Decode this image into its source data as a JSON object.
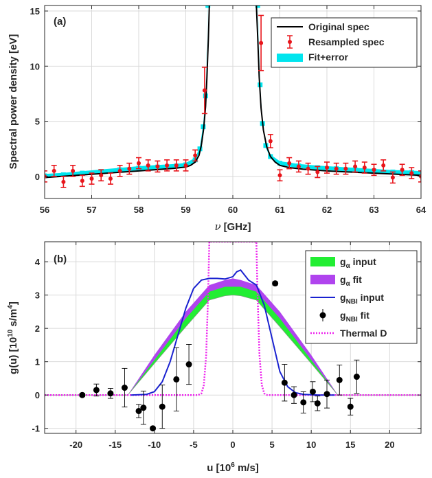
{
  "chart_data": [
    {
      "panel": "(a)",
      "type": "line",
      "xlabel_symbol": "ν",
      "xlabel_unit": "[GHz]",
      "ylabel": "Spectral power density [eV]",
      "xlim": [
        56,
        64
      ],
      "ylim": [
        -2,
        15.5
      ],
      "xticks": [
        56,
        57,
        58,
        59,
        60,
        61,
        62,
        63,
        64
      ],
      "yticks": [
        0,
        5,
        10,
        15
      ],
      "grid": true,
      "legend_position": "top-right",
      "legend": [
        "Original spec",
        "Resampled spec",
        "Fit+error"
      ],
      "colors": {
        "original": "#000000",
        "resampled": "#e8151b",
        "fit": "#00e5ee"
      },
      "original_spec": {
        "x": [
          56.0,
          56.5,
          57.0,
          57.5,
          58.0,
          58.5,
          58.8,
          59.0,
          59.1,
          59.2,
          59.28,
          59.33,
          59.38,
          59.42,
          59.45,
          59.48,
          59.5,
          60.5,
          60.53,
          60.56,
          60.6,
          60.65,
          60.72,
          60.8,
          60.9,
          61.0,
          61.2,
          61.5,
          62.0,
          62.5,
          63.0,
          63.5,
          64.0
        ],
        "y": [
          -0.1,
          0.05,
          0.2,
          0.35,
          0.5,
          0.65,
          0.75,
          0.85,
          1.0,
          1.3,
          1.9,
          2.8,
          4.3,
          6.3,
          9.0,
          12.5,
          15.5,
          15.5,
          12.5,
          9.0,
          6.2,
          4.2,
          2.7,
          1.8,
          1.3,
          1.0,
          0.8,
          0.65,
          0.5,
          0.4,
          0.3,
          0.2,
          0.1
        ]
      },
      "fit": {
        "x": [
          56.0,
          56.4,
          56.8,
          57.2,
          57.6,
          58.0,
          58.4,
          58.8,
          59.0,
          59.2,
          59.3,
          59.37,
          59.42,
          59.47,
          60.53,
          60.58,
          60.63,
          60.7,
          60.8,
          61.0,
          61.4,
          61.8,
          62.2,
          62.6,
          63.0,
          63.4,
          63.8,
          64.0
        ],
        "y": [
          0.05,
          0.15,
          0.3,
          0.45,
          0.6,
          0.75,
          0.85,
          0.95,
          1.05,
          1.5,
          2.5,
          4.5,
          7.3,
          15.5,
          15.5,
          8.3,
          4.8,
          2.8,
          1.8,
          1.2,
          0.95,
          0.8,
          0.7,
          0.6,
          0.5,
          0.4,
          0.35,
          0.3
        ],
        "error": 0.18
      },
      "resampled_spec": [
        {
          "x": 56.0,
          "y": 0.0,
          "err": 0.5
        },
        {
          "x": 56.2,
          "y": 0.5,
          "err": 0.5
        },
        {
          "x": 56.4,
          "y": -0.5,
          "err": 0.5
        },
        {
          "x": 56.6,
          "y": 0.5,
          "err": 0.5
        },
        {
          "x": 56.8,
          "y": -0.4,
          "err": 0.5
        },
        {
          "x": 57.0,
          "y": -0.2,
          "err": 0.5
        },
        {
          "x": 57.2,
          "y": 0.1,
          "err": 0.5
        },
        {
          "x": 57.4,
          "y": -0.2,
          "err": 0.5
        },
        {
          "x": 57.6,
          "y": 0.5,
          "err": 0.5
        },
        {
          "x": 57.8,
          "y": 0.7,
          "err": 0.5
        },
        {
          "x": 58.0,
          "y": 1.2,
          "err": 0.5
        },
        {
          "x": 58.2,
          "y": 1.0,
          "err": 0.5
        },
        {
          "x": 58.4,
          "y": 0.9,
          "err": 0.5
        },
        {
          "x": 58.6,
          "y": 1.0,
          "err": 0.5
        },
        {
          "x": 58.8,
          "y": 1.0,
          "err": 0.5
        },
        {
          "x": 59.0,
          "y": 1.0,
          "err": 0.5
        },
        {
          "x": 59.2,
          "y": 1.9,
          "err": 0.5
        },
        {
          "x": 59.4,
          "y": 7.8,
          "err": 2.1
        },
        {
          "x": 60.6,
          "y": 12.1,
          "err": 2.5
        },
        {
          "x": 60.8,
          "y": 3.2,
          "err": 0.6
        },
        {
          "x": 61.0,
          "y": 0.1,
          "err": 0.5
        },
        {
          "x": 61.2,
          "y": 1.2,
          "err": 0.5
        },
        {
          "x": 61.4,
          "y": 0.9,
          "err": 0.5
        },
        {
          "x": 61.6,
          "y": 0.7,
          "err": 0.5
        },
        {
          "x": 61.8,
          "y": 0.4,
          "err": 0.5
        },
        {
          "x": 62.0,
          "y": 0.8,
          "err": 0.5
        },
        {
          "x": 62.2,
          "y": 0.7,
          "err": 0.5
        },
        {
          "x": 62.4,
          "y": 0.7,
          "err": 0.5
        },
        {
          "x": 62.6,
          "y": 0.9,
          "err": 0.5
        },
        {
          "x": 62.8,
          "y": 0.8,
          "err": 0.5
        },
        {
          "x": 63.0,
          "y": 0.6,
          "err": 0.5
        },
        {
          "x": 63.2,
          "y": 1.0,
          "err": 0.5
        },
        {
          "x": 63.4,
          "y": -0.1,
          "err": 0.5
        },
        {
          "x": 63.6,
          "y": 0.6,
          "err": 0.5
        },
        {
          "x": 63.8,
          "y": 0.3,
          "err": 0.5
        },
        {
          "x": 64.0,
          "y": 0.0,
          "err": 0.5
        }
      ]
    },
    {
      "panel": "(b)",
      "type": "line",
      "xlabel": "u [10",
      "xlabel_exp": "6",
      "xlabel_tail": " m/s]",
      "ylabel": "g(u) [10",
      "ylabel_exp1": "10",
      "ylabel_mid": " s/m",
      "ylabel_exp2": "4",
      "ylabel_tail": "]",
      "xlim": [
        -24,
        24
      ],
      "ylim": [
        -1.15,
        4.6
      ],
      "xticks": [
        -20,
        -15,
        -10,
        -5,
        0,
        5,
        10,
        15,
        20
      ],
      "yticks": [
        -1,
        0,
        1,
        2,
        3,
        4
      ],
      "grid": true,
      "legend_position": "top-right",
      "legend": [
        {
          "main": "g",
          "sub": "α",
          "tail": " input"
        },
        {
          "main": "g",
          "sub": "α",
          "tail": " fit"
        },
        {
          "main": "g",
          "sub": "NBI",
          "tail": " input"
        },
        {
          "main": "g",
          "sub": "NBI",
          "tail": " fit"
        },
        {
          "main": "Thermal D",
          "sub": "",
          "tail": ""
        }
      ],
      "colors": {
        "alpha_input": "#22ee33",
        "alpha_fit": "#b044ee",
        "nbi_input": "#1a22d0",
        "nbi_fit": "#000000",
        "thermal": "#ee22ee"
      },
      "alpha_input_band": {
        "x": [
          -24,
          -13.4,
          -10,
          -6,
          -3,
          -1,
          0,
          1,
          3,
          6,
          10,
          13.4,
          24
        ],
        "lower": [
          0,
          0,
          0.95,
          2.05,
          2.85,
          2.98,
          3.0,
          2.98,
          2.85,
          2.05,
          0.95,
          0,
          0
        ],
        "upper": [
          0,
          0,
          1.05,
          2.3,
          3.1,
          3.25,
          3.25,
          3.25,
          3.1,
          2.3,
          1.05,
          0,
          0
        ]
      },
      "alpha_fit_band": {
        "x": [
          -24,
          -13.4,
          -10,
          -6,
          -3,
          -1,
          0,
          1,
          3,
          6,
          10,
          13.4,
          24
        ],
        "lower": [
          0,
          0,
          1.0,
          2.2,
          3.0,
          3.15,
          3.2,
          3.15,
          3.0,
          2.2,
          1.0,
          0,
          0
        ],
        "upper": [
          0,
          0,
          1.2,
          2.5,
          3.3,
          3.45,
          3.5,
          3.45,
          3.3,
          2.5,
          1.2,
          0,
          0
        ]
      },
      "nbi_input": {
        "x": [
          -13,
          -11,
          -10,
          -9,
          -8,
          -7,
          -6,
          -5,
          -4,
          -3,
          -2,
          -1,
          0,
          0.5,
          1,
          1.5,
          2,
          3,
          4,
          5,
          6,
          7,
          8,
          9,
          10,
          11,
          13
        ],
        "y": [
          0,
          0.02,
          0.1,
          0.4,
          1.0,
          1.8,
          2.6,
          3.2,
          3.45,
          3.5,
          3.5,
          3.48,
          3.55,
          3.7,
          3.75,
          3.6,
          3.45,
          3.3,
          2.7,
          1.7,
          0.7,
          0.25,
          0.07,
          0.02,
          0.01,
          0,
          0
        ]
      },
      "nbi_fit": [
        {
          "x": -19.2,
          "y": 0.0,
          "err": 0.05
        },
        {
          "x": -17.4,
          "y": 0.15,
          "err": 0.18
        },
        {
          "x": -15.6,
          "y": 0.05,
          "err": 0.15
        },
        {
          "x": -13.8,
          "y": 0.22,
          "err": 0.58
        },
        {
          "x": -12.0,
          "y": -0.48,
          "err": 0.2
        },
        {
          "x": -11.4,
          "y": -0.38,
          "err": 0.5
        },
        {
          "x": -10.2,
          "y": -1.0,
          "err": 0.03
        },
        {
          "x": -9.0,
          "y": -0.35,
          "err": 0.65
        },
        {
          "x": -7.2,
          "y": 0.47,
          "err": 0.95
        },
        {
          "x": -5.6,
          "y": 0.92,
          "err": 0.6
        },
        {
          "x": 5.4,
          "y": 3.35,
          "err": 0.05
        },
        {
          "x": 6.6,
          "y": 0.37,
          "err": 0.55
        },
        {
          "x": 7.8,
          "y": 0.0,
          "err": 0.25
        },
        {
          "x": 9.0,
          "y": -0.22,
          "err": 0.32
        },
        {
          "x": 10.2,
          "y": 0.1,
          "err": 0.3
        },
        {
          "x": 10.8,
          "y": -0.25,
          "err": 0.22
        },
        {
          "x": 12.0,
          "y": 0.03,
          "err": 0.42
        },
        {
          "x": 13.6,
          "y": 0.45,
          "err": 0.45
        },
        {
          "x": 15.0,
          "y": -0.35,
          "err": 0.25
        },
        {
          "x": 15.8,
          "y": 0.55,
          "err": 0.5
        }
      ],
      "thermal_D": {
        "x": [
          -24,
          -4.4,
          -4,
          -3.7,
          -3.4,
          -3.15,
          -3.0,
          -2.9,
          2.9,
          3.0,
          3.15,
          3.4,
          3.7,
          4,
          4.4,
          24
        ],
        "y": [
          0,
          0,
          0.05,
          0.3,
          1.2,
          3.0,
          4.6,
          4.6,
          4.6,
          4.6,
          3.0,
          1.2,
          0.3,
          0.05,
          0,
          0
        ]
      }
    }
  ]
}
